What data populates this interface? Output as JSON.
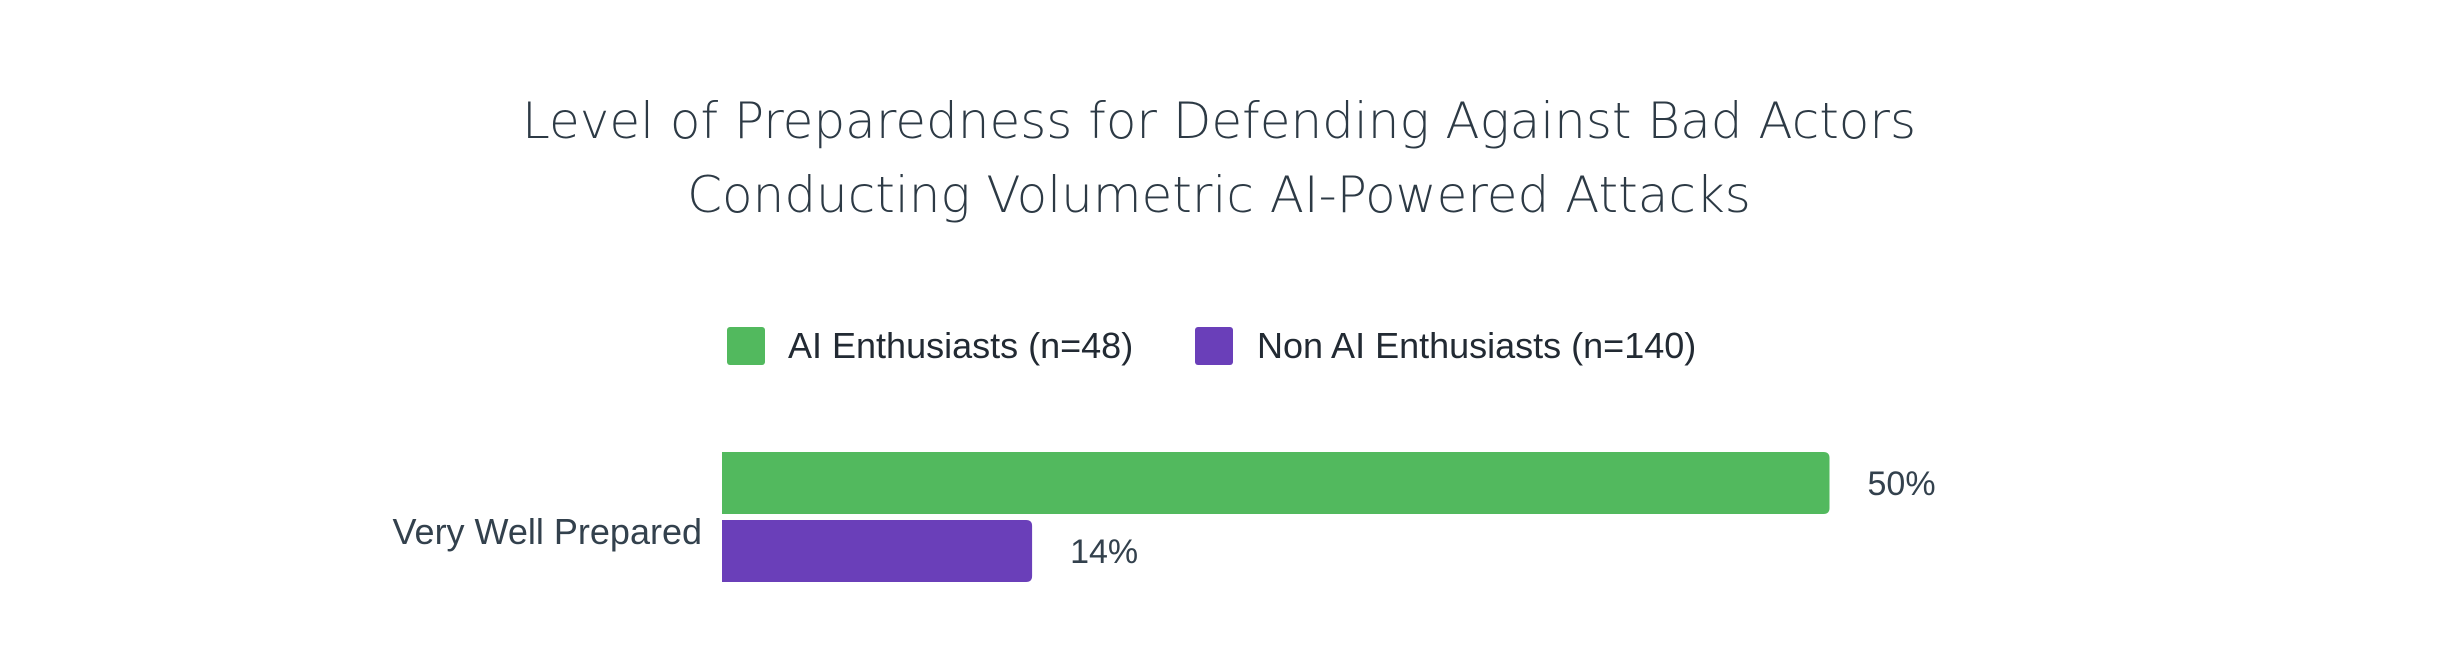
{
  "chart_data": {
    "type": "bar",
    "orientation": "horizontal",
    "title_lines": [
      "Level of Preparedness for Defending Against Bad Actors",
      "Conducting Volumetric AI-Powered Attacks"
    ],
    "categories": [
      "Very Well Prepared"
    ],
    "series": [
      {
        "name": "AI Enthusiasts (n=48)",
        "values": [
          50
        ],
        "value_labels": [
          "50%"
        ],
        "color": "#52b95e"
      },
      {
        "name": "Non AI Enthusiasts (n=140)",
        "values": [
          14
        ],
        "value_labels": [
          "14%"
        ],
        "color": "#6a3fb9"
      }
    ],
    "xlim": [
      0,
      60
    ],
    "legend_position": "top-center",
    "grid": false
  }
}
